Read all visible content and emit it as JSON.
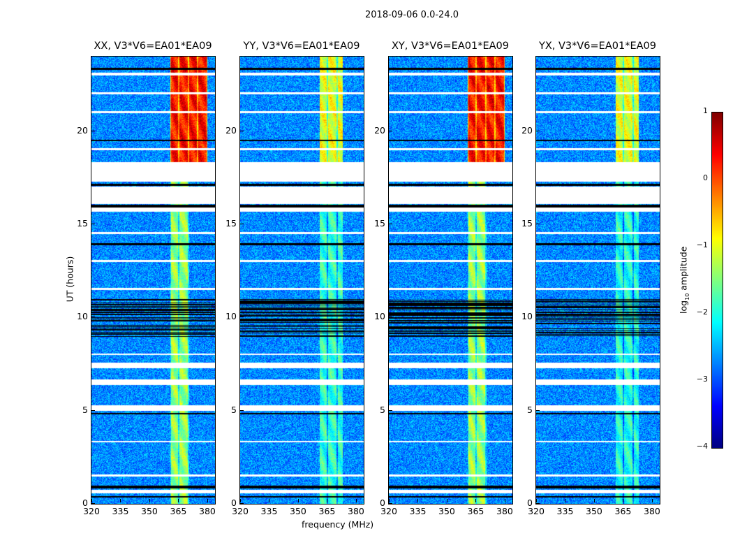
{
  "chart_data": {
    "type": "heatmap",
    "title": "2018-09-06 0.0-24.0",
    "xlabel": "frequency (MHz)",
    "ylabel": "UT (hours)",
    "xlim": [
      320,
      384
    ],
    "ylim": [
      0,
      24
    ],
    "xticks": [
      320,
      335,
      350,
      365,
      380
    ],
    "yticks": [
      0,
      5,
      10,
      15,
      20
    ],
    "colorbar": {
      "label": "log10 amplitude",
      "label_main": "log",
      "label_sub": "10",
      "label_rest": " amplitude",
      "range": [
        -4,
        1
      ],
      "ticks": [
        1,
        0,
        -1,
        -2,
        -3,
        -4
      ],
      "tick_labels": [
        "1",
        "0",
        "−1",
        "−2",
        "−3",
        "−4"
      ],
      "colormap": "jet"
    },
    "background_level": -2.7,
    "flagged_ut_ranges": [
      [
        17.3,
        18.35
      ],
      [
        16.1,
        17.05
      ],
      [
        15.7,
        15.9
      ],
      [
        5.0,
        5.3
      ],
      [
        6.4,
        6.7
      ],
      [
        7.3,
        7.6
      ],
      [
        0.6,
        0.75
      ],
      [
        3.3,
        3.4
      ],
      [
        13.0,
        13.1
      ],
      [
        21.0,
        21.1
      ],
      [
        23.0,
        23.15
      ],
      [
        1.5,
        1.6
      ],
      [
        8.0,
        8.1
      ],
      [
        19.0,
        19.1
      ],
      [
        22.0,
        22.1
      ],
      [
        14.5,
        14.6
      ],
      [
        11.5,
        11.6
      ]
    ],
    "dark_ut_ranges": [
      [
        9.0,
        11.0
      ],
      [
        15.9,
        16.05
      ],
      [
        0.85,
        1.0
      ],
      [
        0.35,
        0.45
      ],
      [
        19.5,
        19.55
      ],
      [
        23.3,
        23.4
      ],
      [
        13.9,
        14.0
      ],
      [
        17.1,
        17.2
      ],
      [
        4.8,
        4.9
      ]
    ],
    "channel_edges_mhz": [
      360.5,
      365.1,
      370.2,
      374.9,
      380
    ],
    "panels": [
      {
        "title": "XX, V3*V6=EA01*EA09",
        "upper_band": [
          360.5,
          380,
          0.3
        ],
        "lower_band": [
          360.5,
          370.5,
          -1.4
        ]
      },
      {
        "title": "YY, V3*V6=EA01*EA09",
        "upper_band": [
          361,
          373,
          -1.0
        ],
        "lower_band": [
          361,
          373,
          -1.9
        ]
      },
      {
        "title": "XY, V3*V6=EA01*EA09",
        "upper_band": [
          360.5,
          380,
          0.3
        ],
        "lower_band": [
          360.5,
          370.5,
          -1.4
        ]
      },
      {
        "title": "YX, V3*V6=EA01*EA09",
        "upper_band": [
          361,
          373,
          -1.0
        ],
        "lower_band": [
          361,
          373,
          -2.0
        ]
      }
    ]
  }
}
